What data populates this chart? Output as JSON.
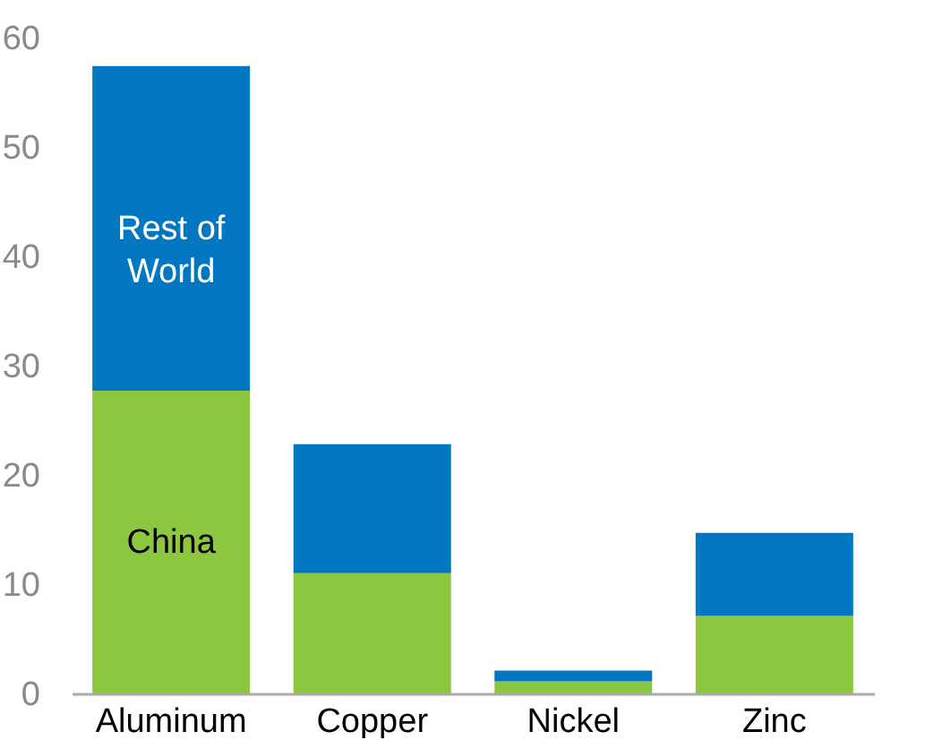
{
  "chart_data": {
    "type": "bar",
    "stacked": true,
    "categories": [
      "Aluminum",
      "Copper",
      "Nickel",
      "Zinc"
    ],
    "series": [
      {
        "name": "China",
        "color": "#8dc63f",
        "values": [
          27.7,
          11.0,
          1.1,
          7.1
        ]
      },
      {
        "name": "Rest of World",
        "color": "#0077c0",
        "values": [
          29.7,
          11.8,
          1.0,
          7.6
        ]
      }
    ],
    "ylim": [
      0,
      60
    ],
    "yticks": [
      0,
      10,
      20,
      30,
      40,
      50,
      60
    ],
    "grid": false
  }
}
